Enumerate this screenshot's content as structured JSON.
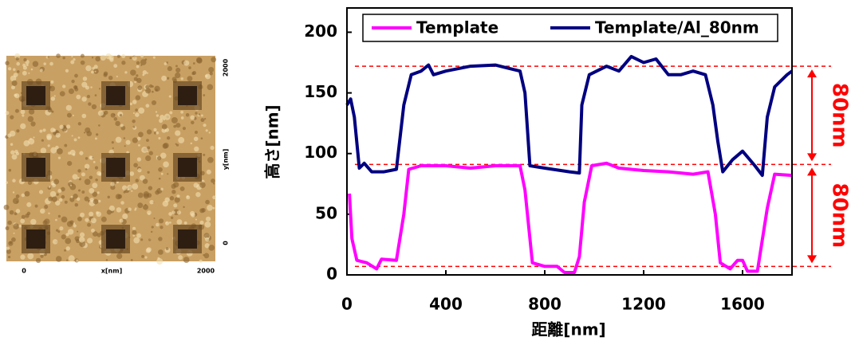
{
  "image_labels": {
    "x_ticks": [
      "0",
      "2000"
    ],
    "x_label": "x[nm]",
    "y_ticks": [
      "0",
      "2000"
    ],
    "y_label": "y[nm]"
  },
  "chart_data": {
    "type": "line",
    "x_label": "距離[nm]",
    "y_label": "高さ[nm]",
    "xlim": [
      0,
      1800
    ],
    "ylim": [
      0,
      220
    ],
    "xticks": [
      0,
      400,
      800,
      1200,
      1600
    ],
    "yticks": [
      0,
      50,
      100,
      150,
      200
    ],
    "legend": "top",
    "series": [
      {
        "name": "Template",
        "color": "#ff00ff",
        "x": [
          10,
          20,
          40,
          80,
          120,
          140,
          200,
          230,
          250,
          300,
          400,
          500,
          600,
          700,
          720,
          750,
          800,
          850,
          880,
          920,
          940,
          960,
          990,
          1050,
          1100,
          1200,
          1300,
          1400,
          1460,
          1490,
          1510,
          1550,
          1580,
          1600,
          1620,
          1660,
          1700,
          1730,
          1800
        ],
        "values": [
          67,
          30,
          12,
          10,
          5,
          13,
          12,
          50,
          87,
          90,
          90,
          88,
          90,
          90,
          70,
          10,
          7,
          7,
          2,
          2,
          15,
          60,
          90,
          92,
          88,
          86,
          85,
          83,
          85,
          50,
          10,
          5,
          12,
          12,
          3,
          3,
          55,
          83,
          82
        ]
      },
      {
        "name": "Template/Al_80nm",
        "color": "#000080",
        "x": [
          0,
          15,
          30,
          50,
          70,
          100,
          150,
          200,
          230,
          260,
          300,
          330,
          350,
          400,
          500,
          600,
          700,
          720,
          740,
          800,
          900,
          940,
          950,
          980,
          1050,
          1100,
          1150,
          1200,
          1250,
          1300,
          1350,
          1400,
          1450,
          1480,
          1500,
          1520,
          1560,
          1600,
          1650,
          1680,
          1700,
          1730,
          1780,
          1800
        ],
        "values": [
          140,
          145,
          130,
          88,
          92,
          85,
          85,
          87,
          140,
          165,
          168,
          173,
          165,
          168,
          172,
          173,
          168,
          150,
          90,
          88,
          85,
          84,
          140,
          165,
          172,
          168,
          180,
          175,
          178,
          165,
          165,
          168,
          165,
          140,
          110,
          85,
          95,
          102,
          90,
          82,
          130,
          155,
          165,
          168
        ]
      }
    ],
    "reference_lines": [
      172,
      91,
      7
    ],
    "annotations": [
      "80nm",
      "80nm"
    ]
  }
}
